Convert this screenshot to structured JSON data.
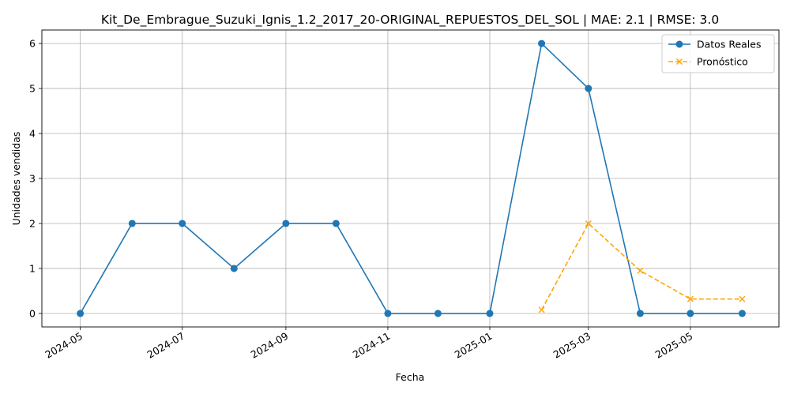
{
  "chart_data": {
    "type": "line",
    "title": "Kit_De_Embrague_Suzuki_Ignis_1.2_2017_20-ORIGINAL_REPUESTOS_DEL_SOL | MAE: 2.1 | RMSE: 3.0",
    "xlabel": "Fecha",
    "ylabel": "Unidades vendidas",
    "xlim": [
      "2024-04-08",
      "2025-06-23"
    ],
    "ylim": [
      -0.3,
      6.3
    ],
    "x_ticks": [
      "2024-05",
      "2024-07",
      "2024-09",
      "2024-11",
      "2025-01",
      "2025-03",
      "2025-05"
    ],
    "x_tick_dates": [
      "2024-05-01",
      "2024-07-01",
      "2024-09-01",
      "2024-11-01",
      "2025-01-01",
      "2025-03-01",
      "2025-05-01"
    ],
    "y_ticks": [
      "0",
      "1",
      "2",
      "3",
      "4",
      "5",
      "6"
    ],
    "grid": true,
    "legend_position": "top-right",
    "series": [
      {
        "name": "Datos Reales",
        "color": "#1f77b4",
        "style": "solid",
        "marker": "circle",
        "x": [
          "2024-05-01",
          "2024-06-01",
          "2024-07-01",
          "2024-08-01",
          "2024-09-01",
          "2024-10-01",
          "2024-11-01",
          "2024-12-01",
          "2025-01-01",
          "2025-02-01",
          "2025-03-01",
          "2025-04-01",
          "2025-05-01",
          "2025-06-01"
        ],
        "values": [
          0,
          2,
          2,
          1,
          2,
          2,
          0,
          0,
          0,
          6,
          5,
          0,
          0,
          0
        ]
      },
      {
        "name": "Pronóstico",
        "color": "#ffa500",
        "style": "dashed",
        "marker": "x",
        "x": [
          "2025-02-01",
          "2025-03-01",
          "2025-04-01",
          "2025-05-01",
          "2025-06-01"
        ],
        "values": [
          0.08,
          2.0,
          0.95,
          0.32,
          0.32
        ]
      }
    ]
  }
}
